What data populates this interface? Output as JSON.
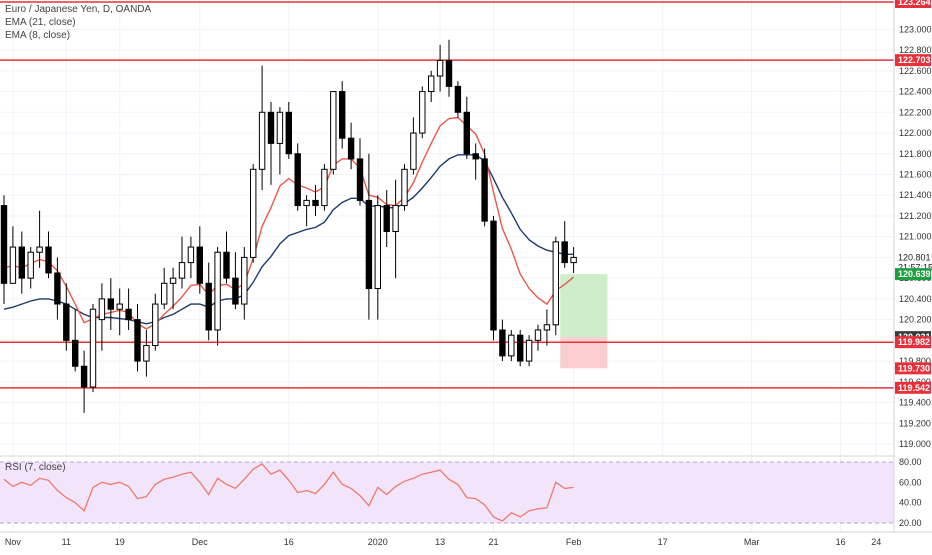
{
  "legend": {
    "title": "Euro / Japanese Yen, D, OANDA",
    "ema21": "EMA (21, close)",
    "ema8": "EMA (8, close)",
    "rsi": "RSI (7, close)"
  },
  "colors": {
    "bull": "#ffffff",
    "bear": "#000000",
    "ema21": "#1b3a6b",
    "ema8": "#e8594a",
    "level_line": "#e8303a",
    "rsi_line": "#ef7a6a",
    "rsi_band": "#f1e4fb",
    "tp_zone": "#c9ecc4",
    "sl_zone": "#f9c9cc"
  },
  "price_axis": {
    "ticks": [
      "123.000",
      "122.800",
      "122.600",
      "122.400",
      "122.200",
      "122.000",
      "121.800",
      "121.600",
      "121.400",
      "121.200",
      "121.000",
      "120.800",
      "120.600",
      "120.400",
      "120.200",
      "120.000",
      "119.800",
      "119.600",
      "119.400",
      "119.200",
      "119.000"
    ]
  },
  "price_badges": [
    {
      "text": "123.264",
      "value": 123.264,
      "bg": "#e8303a"
    },
    {
      "text": "122.703",
      "value": 122.703,
      "bg": "#e8303a"
    },
    {
      "text": "120.801",
      "value": 120.801,
      "bg": "#ffffff",
      "fg": "#222222"
    },
    {
      "text": "21:57:15",
      "value": 120.705,
      "bg": "#ffffff",
      "fg": "#222222"
    },
    {
      "text": "120.639",
      "value": 120.639,
      "bg": "#1d9e3f"
    },
    {
      "text": "120.031",
      "value": 120.031,
      "bg": "#3a3a3a"
    },
    {
      "text": "119.982",
      "value": 119.982,
      "bg": "#e8303a"
    },
    {
      "text": "119.730",
      "value": 119.73,
      "bg": "#e8303a"
    },
    {
      "text": "119.542",
      "value": 119.542,
      "bg": "#e8303a"
    }
  ],
  "horizontal_levels": [
    123.264,
    122.703,
    119.982,
    119.542
  ],
  "time_axis": {
    "labels": [
      {
        "text": "Nov",
        "bar": 1
      },
      {
        "text": "11",
        "bar": 7
      },
      {
        "text": "19",
        "bar": 13
      },
      {
        "text": "Dec",
        "bar": 22
      },
      {
        "text": "16",
        "bar": 32
      },
      {
        "text": "2020",
        "bar": 42
      },
      {
        "text": "13",
        "bar": 49
      },
      {
        "text": "21",
        "bar": 55
      },
      {
        "text": "Feb",
        "bar": 64
      },
      {
        "text": "17",
        "bar": 74
      },
      {
        "text": "Mar",
        "bar": 84
      },
      {
        "text": "16",
        "bar": 94
      },
      {
        "text": "24",
        "bar": 98
      }
    ]
  },
  "rsi_axis": {
    "ticks": [
      "80.00",
      "60.00",
      "40.00",
      "20.00"
    ]
  },
  "trade_zones": {
    "entry": 120.031,
    "target": 120.639,
    "stop": 119.73,
    "start_bar": 62.5,
    "end_bar": 67.8
  },
  "chart_data": {
    "type": "candlestick",
    "symbol": "Euro / Japanese Yen",
    "timeframe": "D",
    "ylim": [
      118.9,
      123.45
    ],
    "candles": [
      {
        "o": 121.3,
        "h": 121.4,
        "l": 120.35,
        "c": 120.55
      },
      {
        "o": 120.55,
        "h": 121.1,
        "l": 120.55,
        "c": 120.9
      },
      {
        "o": 120.9,
        "h": 121.05,
        "l": 120.45,
        "c": 120.6
      },
      {
        "o": 120.6,
        "h": 120.9,
        "l": 120.5,
        "c": 120.85
      },
      {
        "o": 120.85,
        "h": 121.25,
        "l": 120.7,
        "c": 120.9
      },
      {
        "o": 120.9,
        "h": 121.05,
        "l": 120.6,
        "c": 120.65
      },
      {
        "o": 120.65,
        "h": 120.8,
        "l": 120.2,
        "c": 120.35
      },
      {
        "o": 120.35,
        "h": 120.55,
        "l": 119.9,
        "c": 120.0
      },
      {
        "o": 120.0,
        "h": 120.3,
        "l": 119.7,
        "c": 119.75
      },
      {
        "o": 119.75,
        "h": 119.9,
        "l": 119.3,
        "c": 119.55
      },
      {
        "o": 119.55,
        "h": 120.35,
        "l": 119.5,
        "c": 120.3
      },
      {
        "o": 120.2,
        "h": 120.55,
        "l": 119.9,
        "c": 120.4
      },
      {
        "o": 120.4,
        "h": 120.6,
        "l": 120.1,
        "c": 120.3
      },
      {
        "o": 120.3,
        "h": 120.5,
        "l": 120.05,
        "c": 120.35
      },
      {
        "o": 120.3,
        "h": 120.5,
        "l": 120.1,
        "c": 120.2
      },
      {
        "o": 120.2,
        "h": 120.35,
        "l": 119.7,
        "c": 119.8
      },
      {
        "o": 119.8,
        "h": 120.1,
        "l": 119.65,
        "c": 119.95
      },
      {
        "o": 119.95,
        "h": 120.45,
        "l": 119.9,
        "c": 120.35
      },
      {
        "o": 120.35,
        "h": 120.7,
        "l": 120.3,
        "c": 120.55
      },
      {
        "o": 120.55,
        "h": 120.7,
        "l": 120.3,
        "c": 120.6
      },
      {
        "o": 120.6,
        "h": 121.0,
        "l": 120.5,
        "c": 120.75
      },
      {
        "o": 120.75,
        "h": 121.0,
        "l": 120.6,
        "c": 120.9
      },
      {
        "o": 120.9,
        "h": 121.1,
        "l": 120.45,
        "c": 120.55
      },
      {
        "o": 120.55,
        "h": 120.75,
        "l": 120.0,
        "c": 120.1
      },
      {
        "o": 120.1,
        "h": 120.9,
        "l": 119.95,
        "c": 120.85
      },
      {
        "o": 120.85,
        "h": 121.05,
        "l": 120.55,
        "c": 120.6
      },
      {
        "o": 120.6,
        "h": 120.85,
        "l": 120.3,
        "c": 120.35
      },
      {
        "o": 120.35,
        "h": 120.9,
        "l": 120.2,
        "c": 120.8
      },
      {
        "o": 120.8,
        "h": 121.7,
        "l": 120.75,
        "c": 121.65
      },
      {
        "o": 121.65,
        "h": 122.65,
        "l": 121.45,
        "c": 122.2
      },
      {
        "o": 122.2,
        "h": 122.3,
        "l": 121.5,
        "c": 121.9
      },
      {
        "o": 121.9,
        "h": 122.25,
        "l": 121.6,
        "c": 122.2
      },
      {
        "o": 122.2,
        "h": 122.3,
        "l": 121.75,
        "c": 121.8
      },
      {
        "o": 121.8,
        "h": 121.9,
        "l": 121.25,
        "c": 121.3
      },
      {
        "o": 121.3,
        "h": 121.4,
        "l": 121.1,
        "c": 121.35
      },
      {
        "o": 121.35,
        "h": 121.5,
        "l": 121.2,
        "c": 121.3
      },
      {
        "o": 121.3,
        "h": 121.7,
        "l": 121.25,
        "c": 121.65
      },
      {
        "o": 121.65,
        "h": 122.4,
        "l": 121.6,
        "c": 122.4
      },
      {
        "o": 122.4,
        "h": 122.5,
        "l": 121.85,
        "c": 121.95
      },
      {
        "o": 121.95,
        "h": 122.1,
        "l": 121.65,
        "c": 121.75
      },
      {
        "o": 121.75,
        "h": 121.95,
        "l": 121.3,
        "c": 121.35
      },
      {
        "o": 121.35,
        "h": 121.8,
        "l": 120.2,
        "c": 120.5
      },
      {
        "o": 120.5,
        "h": 121.4,
        "l": 120.2,
        "c": 121.3
      },
      {
        "o": 121.3,
        "h": 121.45,
        "l": 120.9,
        "c": 121.05
      },
      {
        "o": 121.05,
        "h": 121.55,
        "l": 120.6,
        "c": 121.3
      },
      {
        "o": 121.3,
        "h": 121.7,
        "l": 121.25,
        "c": 121.65
      },
      {
        "o": 121.65,
        "h": 122.15,
        "l": 121.6,
        "c": 122.0
      },
      {
        "o": 122.0,
        "h": 122.45,
        "l": 121.95,
        "c": 122.4
      },
      {
        "o": 122.4,
        "h": 122.6,
        "l": 122.3,
        "c": 122.55
      },
      {
        "o": 122.55,
        "h": 122.85,
        "l": 122.4,
        "c": 122.7
      },
      {
        "o": 122.7,
        "h": 122.9,
        "l": 122.35,
        "c": 122.45
      },
      {
        "o": 122.45,
        "h": 122.5,
        "l": 122.15,
        "c": 122.2
      },
      {
        "o": 122.2,
        "h": 122.35,
        "l": 121.75,
        "c": 121.8
      },
      {
        "o": 121.8,
        "h": 121.9,
        "l": 121.55,
        "c": 121.75
      },
      {
        "o": 121.75,
        "h": 121.85,
        "l": 121.1,
        "c": 121.15
      },
      {
        "o": 121.15,
        "h": 121.2,
        "l": 120.0,
        "c": 120.1
      },
      {
        "o": 120.1,
        "h": 120.2,
        "l": 119.8,
        "c": 119.85
      },
      {
        "o": 119.85,
        "h": 120.1,
        "l": 119.8,
        "c": 120.05
      },
      {
        "o": 120.05,
        "h": 120.1,
        "l": 119.75,
        "c": 119.8
      },
      {
        "o": 119.8,
        "h": 120.05,
        "l": 119.75,
        "c": 120.0
      },
      {
        "o": 120.0,
        "h": 120.15,
        "l": 119.9,
        "c": 120.1
      },
      {
        "o": 120.1,
        "h": 120.3,
        "l": 119.95,
        "c": 120.15
      },
      {
        "o": 120.15,
        "h": 121.0,
        "l": 120.05,
        "c": 120.95
      },
      {
        "o": 120.95,
        "h": 121.15,
        "l": 120.7,
        "c": 120.75
      },
      {
        "o": 120.75,
        "h": 120.9,
        "l": 120.65,
        "c": 120.8
      }
    ],
    "ema21": [
      120.3,
      120.32,
      120.35,
      120.38,
      120.4,
      120.4,
      120.38,
      120.35,
      120.3,
      120.25,
      120.22,
      120.22,
      120.22,
      120.21,
      120.2,
      120.18,
      120.16,
      120.18,
      120.22,
      120.25,
      120.3,
      120.35,
      120.35,
      120.32,
      120.38,
      120.4,
      120.4,
      120.44,
      120.56,
      120.71,
      120.81,
      120.93,
      121.01,
      121.04,
      121.07,
      121.09,
      121.14,
      121.26,
      121.33,
      121.37,
      121.37,
      121.29,
      121.3,
      121.28,
      121.28,
      121.32,
      121.38,
      121.47,
      121.57,
      121.68,
      121.75,
      121.79,
      121.79,
      121.79,
      121.73,
      121.56,
      121.38,
      121.23,
      121.07,
      120.97,
      120.91,
      120.87,
      120.85,
      120.83,
      120.83
    ],
    "ema8": [
      120.7,
      120.72,
      120.7,
      120.74,
      120.78,
      120.76,
      120.67,
      120.52,
      120.35,
      120.17,
      120.21,
      120.25,
      120.27,
      120.29,
      120.27,
      120.16,
      120.11,
      120.16,
      120.25,
      120.33,
      120.42,
      120.53,
      120.54,
      120.44,
      120.53,
      120.54,
      120.49,
      120.55,
      120.79,
      121.1,
      121.28,
      121.49,
      121.56,
      121.5,
      121.47,
      121.43,
      121.48,
      121.69,
      121.75,
      121.75,
      121.66,
      121.4,
      121.38,
      121.31,
      121.3,
      121.38,
      121.52,
      121.72,
      121.9,
      122.07,
      122.14,
      122.15,
      122.07,
      121.99,
      121.8,
      121.43,
      121.08,
      120.88,
      120.64,
      120.5,
      120.41,
      120.35,
      120.48,
      120.54,
      120.61
    ],
    "rsi": [
      63,
      56,
      60,
      57,
      64,
      62,
      52,
      45,
      40,
      32,
      55,
      60,
      58,
      60,
      56,
      44,
      46,
      58,
      63,
      65,
      68,
      70,
      60,
      48,
      64,
      58,
      54,
      63,
      73,
      78,
      68,
      72,
      62,
      50,
      52,
      49,
      58,
      70,
      58,
      54,
      47,
      37,
      55,
      48,
      56,
      61,
      64,
      68,
      70,
      72,
      63,
      58,
      45,
      44,
      38,
      26,
      22,
      30,
      26,
      32,
      34,
      35,
      60,
      54,
      55
    ]
  }
}
